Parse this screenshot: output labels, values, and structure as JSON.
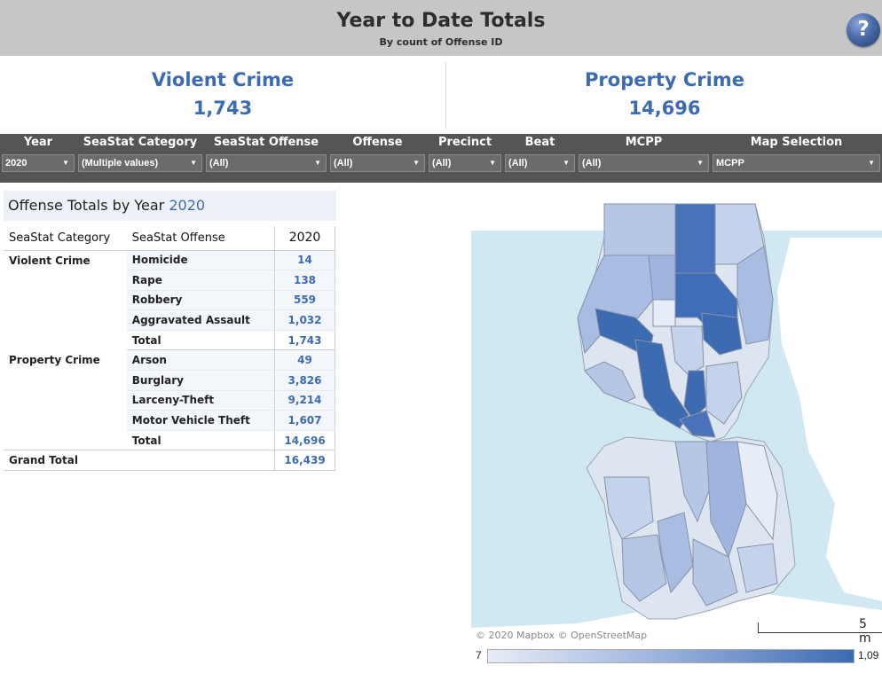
{
  "header": {
    "title": "Year to Date Totals",
    "subtitle": "By count of Offense ID",
    "help_label": "?"
  },
  "kpis": {
    "violent": {
      "label": "Violent Crime",
      "value": "1,743"
    },
    "property": {
      "label": "Property Crime",
      "value": "14,696"
    }
  },
  "filters": [
    {
      "label": "Year",
      "value": "2020"
    },
    {
      "label": "SeaStat Category",
      "value": "(Multiple values)"
    },
    {
      "label": "SeaStat Offense",
      "value": "(All)"
    },
    {
      "label": "Offense",
      "value": "(All)"
    },
    {
      "label": "Precinct",
      "value": "(All)"
    },
    {
      "label": "Beat",
      "value": "(All)"
    },
    {
      "label": "MCPP",
      "value": "(All)"
    },
    {
      "label": "Map Selection",
      "value": "MCPP"
    }
  ],
  "table": {
    "title_prefix": "Offense Totals by Year",
    "title_year": "2020",
    "headers": {
      "category": "SeaStat Category",
      "offense": "SeaStat Offense",
      "year": "2020"
    },
    "rows": [
      {
        "category": "Violent Crime",
        "offense": "Homicide",
        "value": "14"
      },
      {
        "category": "",
        "offense": "Rape",
        "value": "138"
      },
      {
        "category": "",
        "offense": "Robbery",
        "value": "559"
      },
      {
        "category": "",
        "offense": "Aggravated Assault",
        "value": "1,032"
      },
      {
        "category": "",
        "offense": "Total",
        "value": "1,743"
      },
      {
        "category": "Property Crime",
        "offense": "Arson",
        "value": "49"
      },
      {
        "category": "",
        "offense": "Burglary",
        "value": "3,826"
      },
      {
        "category": "",
        "offense": "Larceny-Theft",
        "value": "9,214"
      },
      {
        "category": "",
        "offense": "Motor Vehicle Theft",
        "value": "1,607"
      },
      {
        "category": "",
        "offense": "Total",
        "value": "14,696"
      }
    ],
    "grand_total": {
      "label": "Grand Total",
      "value": "16,439"
    }
  },
  "map": {
    "attribution": "© 2020 Mapbox © OpenStreetMap",
    "scale_label": "5 m",
    "legend_min": "7",
    "legend_max": "1,09",
    "colors": {
      "water": "#cfe8f2",
      "land": "#ffffff",
      "low": "#e8edf6",
      "mid": "#9fb5df",
      "high": "#3d6bb2"
    }
  }
}
